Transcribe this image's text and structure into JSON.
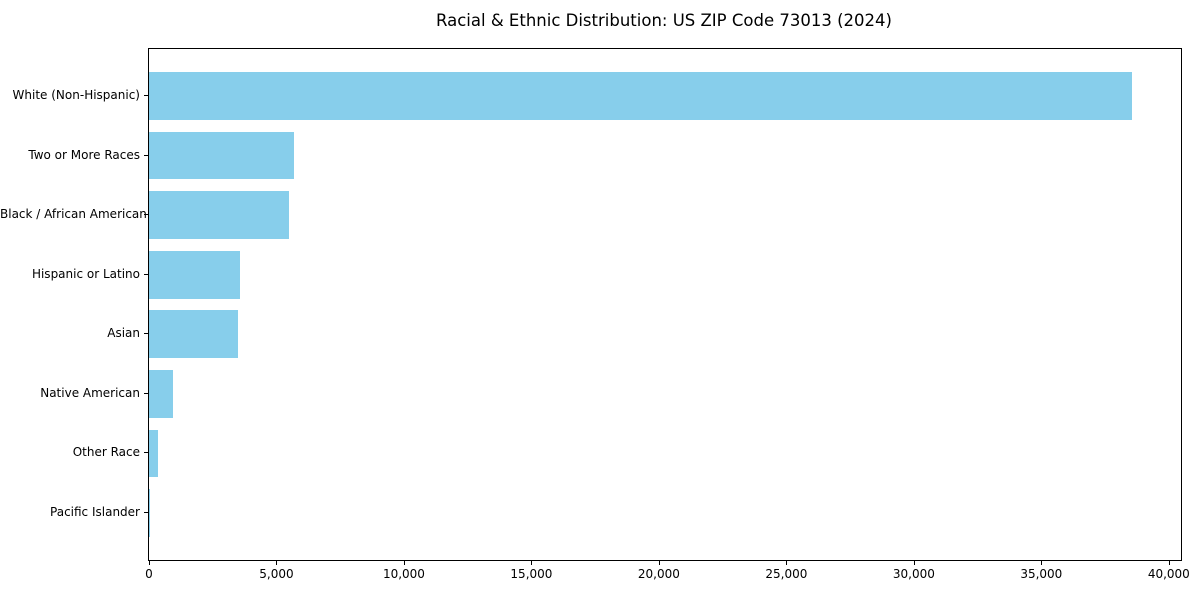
{
  "page": {
    "background_color": "#ffffff"
  },
  "chart_data": {
    "type": "bar",
    "orientation": "horizontal",
    "title": "Racial & Ethnic Distribution: US ZIP Code 73013 (2024)",
    "categories": [
      "White (Non-Hispanic)",
      "Two or More Races",
      "Black / African American",
      "Hispanic or Latino",
      "Asian",
      "Native American",
      "Other Race",
      "Pacific Islander"
    ],
    "values": [
      38550,
      5690,
      5490,
      3570,
      3490,
      940,
      350,
      30
    ],
    "xlabel": "",
    "ylabel": "",
    "xlim": [
      0,
      40478
    ],
    "x_ticks": [
      {
        "value": 0,
        "label": "0"
      },
      {
        "value": 5000,
        "label": "5,000"
      },
      {
        "value": 10000,
        "label": "10,000"
      },
      {
        "value": 15000,
        "label": "15,000"
      },
      {
        "value": 20000,
        "label": "20,000"
      },
      {
        "value": 25000,
        "label": "25,000"
      },
      {
        "value": 30000,
        "label": "30,000"
      },
      {
        "value": 35000,
        "label": "35,000"
      },
      {
        "value": 40000,
        "label": "40,000"
      }
    ],
    "bar_color": "#87CEEB",
    "axis_color": "#000000",
    "text_color": "#000000",
    "grid": false,
    "legend": "none"
  }
}
